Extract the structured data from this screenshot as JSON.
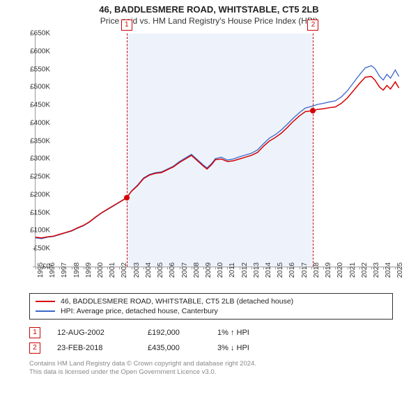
{
  "title": "46, BADDLESMERE ROAD, WHITSTABLE, CT5 2LB",
  "subtitle": "Price paid vs. HM Land Registry's House Price Index (HPI)",
  "chart": {
    "type": "line",
    "background_color": "#ffffff",
    "shade_color": "#eef3fb",
    "axis_color": "#999999",
    "text_color": "#333333",
    "x_range": [
      1995,
      2025.5
    ],
    "y_range": [
      0,
      650
    ],
    "y_unit_prefix": "£",
    "y_unit_suffix": "K",
    "y_ticks": [
      0,
      50,
      100,
      150,
      200,
      250,
      300,
      350,
      400,
      450,
      500,
      550,
      600,
      650
    ],
    "x_ticks": [
      1995,
      1996,
      1997,
      1998,
      1999,
      2000,
      2001,
      2002,
      2003,
      2004,
      2005,
      2006,
      2007,
      2008,
      2009,
      2010,
      2011,
      2012,
      2013,
      2014,
      2015,
      2016,
      2017,
      2018,
      2019,
      2020,
      2021,
      2022,
      2023,
      2024,
      2025
    ],
    "series": [
      {
        "name": "46, BADDLESMERE ROAD, WHITSTABLE, CT5 2LB (detached house)",
        "color": "#d60000",
        "line_width": 1.5,
        "points": [
          [
            1995,
            82
          ],
          [
            1995.5,
            80
          ],
          [
            1996,
            83
          ],
          [
            1996.5,
            85
          ],
          [
            1997,
            90
          ],
          [
            1997.5,
            95
          ],
          [
            1998,
            100
          ],
          [
            1998.5,
            108
          ],
          [
            1999,
            115
          ],
          [
            1999.5,
            125
          ],
          [
            2000,
            138
          ],
          [
            2000.5,
            150
          ],
          [
            2001,
            160
          ],
          [
            2001.5,
            170
          ],
          [
            2002,
            180
          ],
          [
            2002.6,
            192
          ],
          [
            2003,
            210
          ],
          [
            2003.5,
            225
          ],
          [
            2004,
            245
          ],
          [
            2004.5,
            255
          ],
          [
            2005,
            260
          ],
          [
            2005.5,
            262
          ],
          [
            2006,
            270
          ],
          [
            2006.5,
            278
          ],
          [
            2007,
            290
          ],
          [
            2007.5,
            300
          ],
          [
            2008,
            310
          ],
          [
            2008.5,
            295
          ],
          [
            2009,
            280
          ],
          [
            2009.3,
            272
          ],
          [
            2009.7,
            285
          ],
          [
            2010,
            298
          ],
          [
            2010.5,
            300
          ],
          [
            2011,
            293
          ],
          [
            2011.5,
            295
          ],
          [
            2012,
            300
          ],
          [
            2012.5,
            305
          ],
          [
            2013,
            310
          ],
          [
            2013.5,
            318
          ],
          [
            2014,
            335
          ],
          [
            2014.5,
            350
          ],
          [
            2015,
            360
          ],
          [
            2015.5,
            372
          ],
          [
            2016,
            388
          ],
          [
            2016.5,
            405
          ],
          [
            2017,
            420
          ],
          [
            2017.5,
            432
          ],
          [
            2018.15,
            435
          ],
          [
            2018.5,
            438
          ],
          [
            2019,
            440
          ],
          [
            2019.5,
            443
          ],
          [
            2020,
            445
          ],
          [
            2020.5,
            455
          ],
          [
            2021,
            470
          ],
          [
            2021.5,
            490
          ],
          [
            2022,
            510
          ],
          [
            2022.5,
            528
          ],
          [
            2023,
            530
          ],
          [
            2023.3,
            520
          ],
          [
            2023.7,
            500
          ],
          [
            2024,
            492
          ],
          [
            2024.3,
            505
          ],
          [
            2024.6,
            495
          ],
          [
            2025,
            515
          ],
          [
            2025.3,
            498
          ]
        ]
      },
      {
        "name": "HPI: Average price, detached house, Canterbury",
        "color": "#3b68c9",
        "line_width": 1.3,
        "points": [
          [
            1995,
            80
          ],
          [
            1995.5,
            78
          ],
          [
            1996,
            82
          ],
          [
            1996.5,
            84
          ],
          [
            1997,
            89
          ],
          [
            1997.5,
            94
          ],
          [
            1998,
            99
          ],
          [
            1998.5,
            107
          ],
          [
            1999,
            114
          ],
          [
            1999.5,
            124
          ],
          [
            2000,
            137
          ],
          [
            2000.5,
            149
          ],
          [
            2001,
            159
          ],
          [
            2001.5,
            169
          ],
          [
            2002,
            179
          ],
          [
            2002.6,
            191
          ],
          [
            2003,
            211
          ],
          [
            2003.5,
            227
          ],
          [
            2004,
            247
          ],
          [
            2004.5,
            257
          ],
          [
            2005,
            262
          ],
          [
            2005.5,
            264
          ],
          [
            2006,
            272
          ],
          [
            2006.5,
            280
          ],
          [
            2007,
            293
          ],
          [
            2007.5,
            303
          ],
          [
            2008,
            313
          ],
          [
            2008.5,
            298
          ],
          [
            2009,
            283
          ],
          [
            2009.3,
            275
          ],
          [
            2009.7,
            288
          ],
          [
            2010,
            301
          ],
          [
            2010.5,
            305
          ],
          [
            2011,
            297
          ],
          [
            2011.5,
            300
          ],
          [
            2012,
            306
          ],
          [
            2012.5,
            311
          ],
          [
            2013,
            316
          ],
          [
            2013.5,
            325
          ],
          [
            2014,
            342
          ],
          [
            2014.5,
            358
          ],
          [
            2015,
            368
          ],
          [
            2015.5,
            381
          ],
          [
            2016,
            397
          ],
          [
            2016.5,
            414
          ],
          [
            2017,
            429
          ],
          [
            2017.5,
            442
          ],
          [
            2018.15,
            448
          ],
          [
            2018.5,
            452
          ],
          [
            2019,
            455
          ],
          [
            2019.5,
            459
          ],
          [
            2020,
            462
          ],
          [
            2020.5,
            473
          ],
          [
            2021,
            490
          ],
          [
            2021.5,
            512
          ],
          [
            2022,
            534
          ],
          [
            2022.5,
            554
          ],
          [
            2023,
            560
          ],
          [
            2023.3,
            552
          ],
          [
            2023.7,
            530
          ],
          [
            2024,
            520
          ],
          [
            2024.3,
            536
          ],
          [
            2024.6,
            525
          ],
          [
            2025,
            548
          ],
          [
            2025.3,
            530
          ]
        ]
      }
    ],
    "sales_markers": [
      {
        "id": "1",
        "x": 2002.6,
        "y": 192,
        "color": "#d60000"
      },
      {
        "id": "2",
        "x": 2018.15,
        "y": 435,
        "color": "#d60000"
      }
    ],
    "shaded_region_x": [
      2002.6,
      2018.15
    ]
  },
  "legend": [
    {
      "color": "#d60000",
      "label": "46, BADDLESMERE ROAD, WHITSTABLE, CT5 2LB (detached house)"
    },
    {
      "color": "#3b68c9",
      "label": "HPI: Average price, detached house, Canterbury"
    }
  ],
  "sales": [
    {
      "id": "1",
      "date": "12-AUG-2002",
      "price": "£192,000",
      "hpi": "1% ↑ HPI"
    },
    {
      "id": "2",
      "date": "23-FEB-2018",
      "price": "£435,000",
      "hpi": "3% ↓ HPI"
    }
  ],
  "copyright": {
    "line1": "Contains HM Land Registry data © Crown copyright and database right 2024.",
    "line2": "This data is licensed under the Open Government Licence v3.0."
  }
}
